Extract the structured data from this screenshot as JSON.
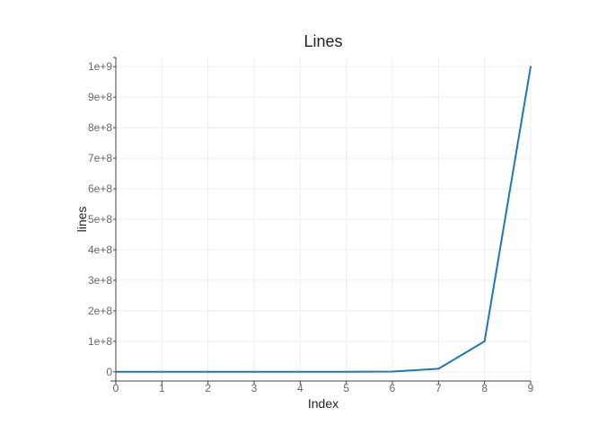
{
  "chart_data": {
    "type": "line",
    "title": "Lines",
    "xlabel": "Index",
    "ylabel": "lines",
    "x": [
      0,
      1,
      2,
      3,
      4,
      5,
      6,
      7,
      8,
      9
    ],
    "series": [
      {
        "values": [
          1,
          10,
          100,
          1000,
          10000,
          100000,
          1000000,
          10000000,
          100000000,
          1000000000
        ],
        "color": "#1f77b4"
      }
    ],
    "xlim": [
      0,
      9
    ],
    "ylim": [
      -30000000,
      1030000000
    ],
    "xticks": [
      {
        "value": 0,
        "label": "0"
      },
      {
        "value": 1,
        "label": "1"
      },
      {
        "value": 2,
        "label": "2"
      },
      {
        "value": 3,
        "label": "3"
      },
      {
        "value": 4,
        "label": "4"
      },
      {
        "value": 5,
        "label": "5"
      },
      {
        "value": 6,
        "label": "6"
      },
      {
        "value": 7,
        "label": "7"
      },
      {
        "value": 8,
        "label": "8"
      },
      {
        "value": 9,
        "label": "9"
      }
    ],
    "yticks": [
      {
        "value": 0,
        "label": "0"
      },
      {
        "value": 100000000,
        "label": "1e+8"
      },
      {
        "value": 200000000,
        "label": "2e+8"
      },
      {
        "value": 300000000,
        "label": "3e+8"
      },
      {
        "value": 400000000,
        "label": "4e+8"
      },
      {
        "value": 500000000,
        "label": "5e+8"
      },
      {
        "value": 600000000,
        "label": "6e+8"
      },
      {
        "value": 700000000,
        "label": "7e+8"
      },
      {
        "value": 800000000,
        "label": "8e+8"
      },
      {
        "value": 900000000,
        "label": "9e+8"
      },
      {
        "value": 1000000000,
        "label": "1e+9"
      }
    ],
    "grid": true,
    "legend": "none"
  }
}
